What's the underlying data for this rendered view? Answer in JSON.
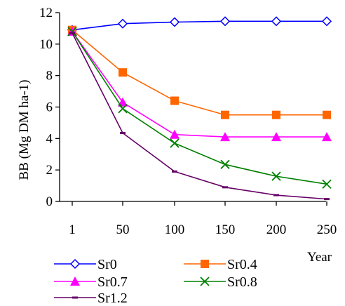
{
  "chart_data": {
    "type": "line",
    "x": [
      "1",
      "50",
      "100",
      "150",
      "200",
      "250"
    ],
    "xlabel": "Year",
    "ylabel": "BB (Mg DM ha-1)",
    "ylim": [
      0,
      12
    ],
    "yticks": [
      0,
      2,
      4,
      6,
      8,
      10,
      12
    ],
    "grid": false,
    "legend_position": "bottom",
    "series": [
      {
        "name": "Sr0",
        "values": [
          10.9,
          11.3,
          11.4,
          11.45,
          11.45,
          11.45
        ],
        "color": "#0000ff",
        "marker": "diamond-open"
      },
      {
        "name": "Sr0.4",
        "values": [
          10.9,
          8.2,
          6.4,
          5.5,
          5.5,
          5.5
        ],
        "color": "#ff6600",
        "marker": "square"
      },
      {
        "name": "Sr0.7",
        "values": [
          10.8,
          6.3,
          4.25,
          4.1,
          4.1,
          4.1
        ],
        "color": "#ff00ff",
        "marker": "triangle"
      },
      {
        "name": "Sr0.8",
        "values": [
          10.8,
          5.9,
          3.7,
          2.35,
          1.6,
          1.1
        ],
        "color": "#008000",
        "marker": "x"
      },
      {
        "name": "Sr1.2",
        "values": [
          10.7,
          4.35,
          1.9,
          0.9,
          0.4,
          0.15
        ],
        "color": "#660066",
        "marker": "dash"
      }
    ]
  }
}
